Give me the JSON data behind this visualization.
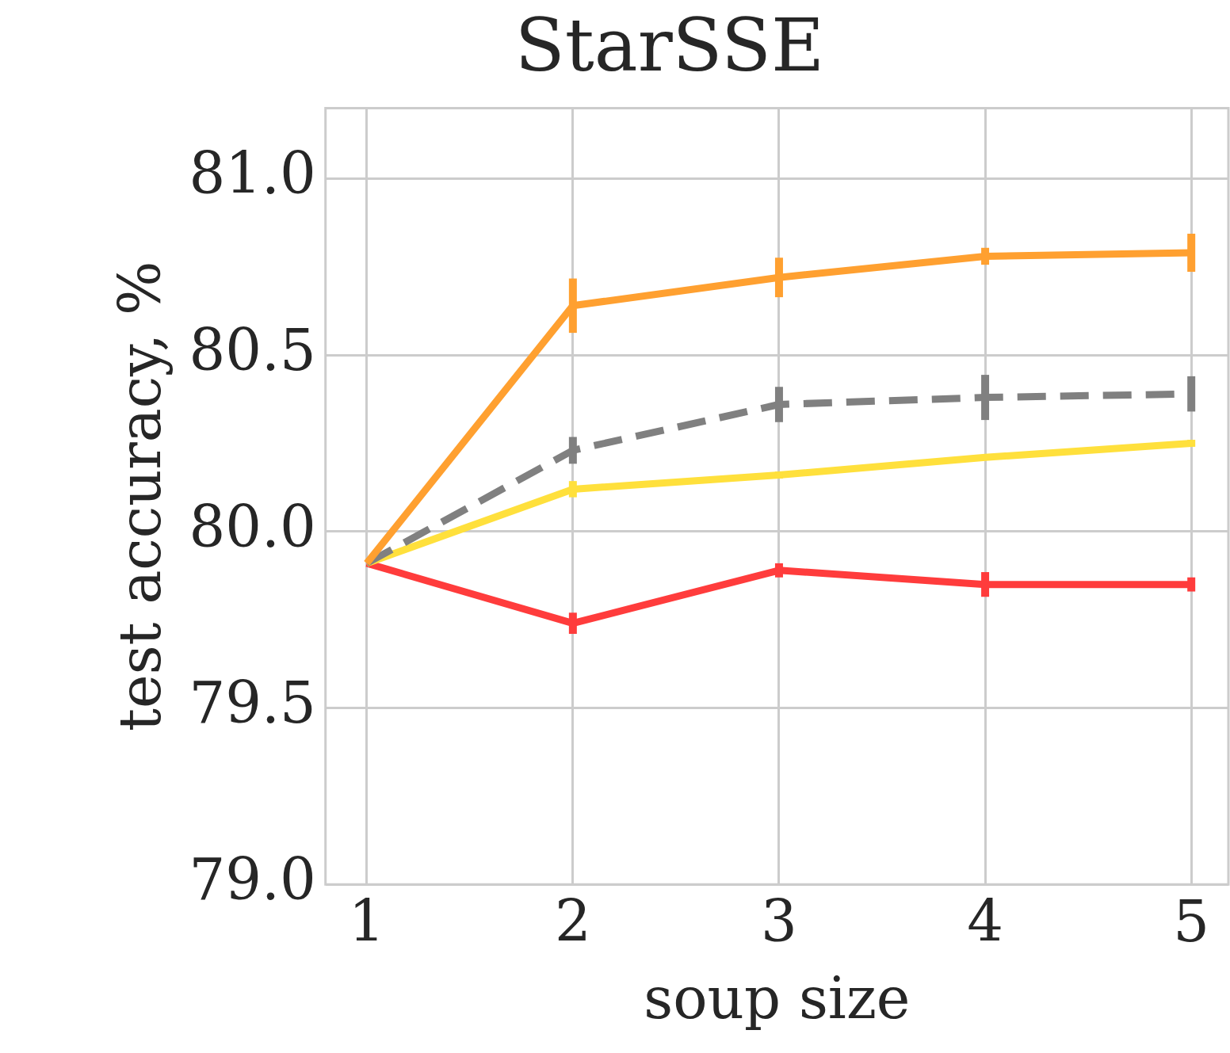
{
  "chart_data": {
    "type": "line",
    "title": "StarSSE",
    "xlabel": "soup size",
    "ylabel": "test accuracy, %",
    "x": [
      1,
      2,
      3,
      4,
      5
    ],
    "series": [
      {
        "color": "#ffa030",
        "values": [
          79.91,
          80.64,
          80.72,
          80.78,
          80.79
        ],
        "errors": [
          null,
          0.077,
          0.056,
          0.024,
          0.054
        ]
      },
      {
        "color": "#808080",
        "line_style": "dashed",
        "values": [
          79.91,
          80.23,
          80.36,
          80.38,
          80.39
        ],
        "errors": [
          null,
          0.038,
          0.05,
          0.064,
          0.05
        ]
      },
      {
        "color": "#ffe03c",
        "values": [
          79.91,
          80.12,
          80.16,
          80.21,
          80.25
        ],
        "errors": [
          null,
          0.023,
          0.01,
          null,
          0.01
        ]
      },
      {
        "color": "#ff3c3c",
        "values": [
          79.91,
          79.74,
          79.89,
          79.85,
          79.85
        ],
        "errors": [
          null,
          0.03,
          0.02,
          0.035,
          0.02
        ]
      }
    ],
    "xlim": [
      0.8,
      5.18
    ],
    "xticks": [
      1,
      2,
      3,
      4,
      5
    ],
    "ylim": [
      79,
      81.2
    ],
    "yticks": [
      {
        "value": 79,
        "label": "79.0"
      },
      {
        "value": 79.5,
        "label": "79.5"
      },
      {
        "value": 80,
        "label": "80.0"
      },
      {
        "value": 80.5,
        "label": "80.5"
      },
      {
        "value": 81,
        "label": "81.0"
      }
    ],
    "grid": true,
    "legend": false,
    "marker": "none"
  }
}
